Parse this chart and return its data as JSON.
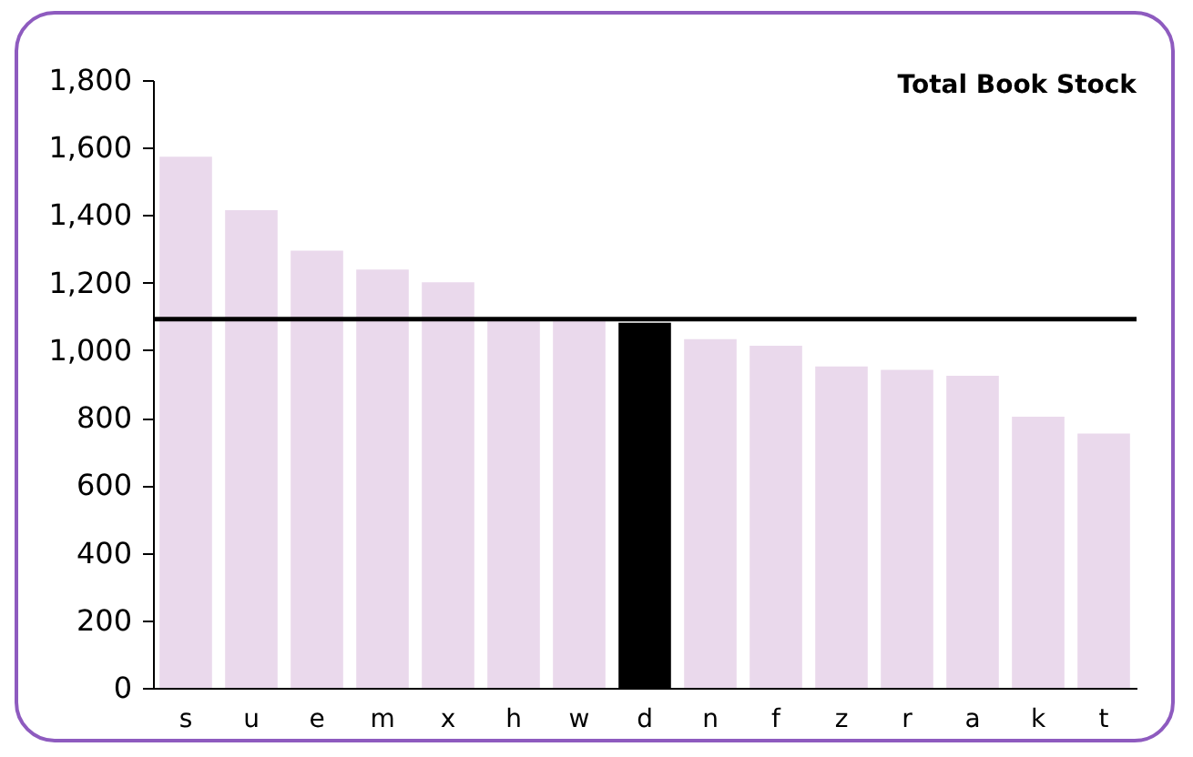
{
  "chart_data": {
    "type": "bar",
    "title": "Total Book Stock",
    "categories": [
      "s",
      "u",
      "e",
      "m",
      "x",
      "h",
      "w",
      "d",
      "n",
      "f",
      "z",
      "r",
      "a",
      "k",
      "t"
    ],
    "values": [
      1573,
      1415,
      1295,
      1239,
      1201,
      1090,
      1090,
      1081,
      1033,
      1013,
      952,
      942,
      924,
      803,
      753
    ],
    "colors": [
      "#ead9ec",
      "#ead9ec",
      "#ead9ec",
      "#ead9ec",
      "#ead9ec",
      "#ead9ec",
      "#ead9ec",
      "#000000",
      "#ead9ec",
      "#ead9ec",
      "#ead9ec",
      "#ead9ec",
      "#ead9ec",
      "#ead9ec",
      "#ead9ec"
    ],
    "ylim": [
      0,
      1800
    ],
    "yticks": [
      0,
      200,
      400,
      600,
      800,
      {
        "value": 1000,
        "label": "1,000"
      },
      {
        "value": 1200,
        "label": "1,200"
      },
      {
        "value": 1400,
        "label": "1,400"
      },
      {
        "value": 1600,
        "label": "1,600"
      },
      {
        "value": 1800,
        "label": "1,800"
      }
    ],
    "ref_lines": [
      {
        "axis": "y",
        "value": 1092,
        "color": "#000000"
      }
    ],
    "grid": false,
    "legend": false
  }
}
